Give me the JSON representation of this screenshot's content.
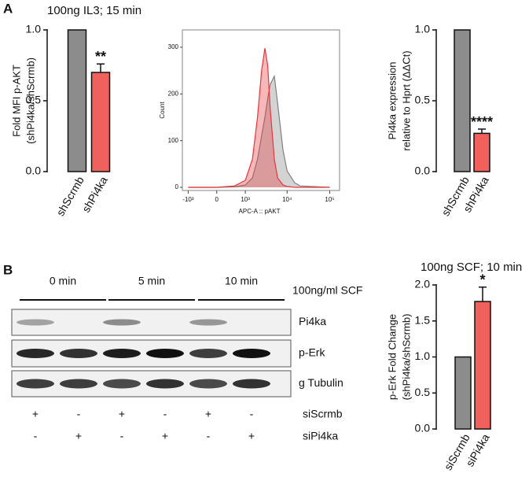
{
  "panels": {
    "a": "A",
    "b": "B"
  },
  "chart_data": [
    {
      "type": "bar",
      "title": "100ng IL3; 15 min",
      "y_label": [
        "Fold MFI p-AKT",
        "(shPi4ka/shScrmb)"
      ],
      "categories": [
        "shScrmb",
        "shPi4ka"
      ],
      "values": [
        1.0,
        0.7
      ],
      "errors": [
        null,
        0.06
      ],
      "sig_labels": [
        null,
        "**"
      ],
      "colors": [
        "#8c8c8c",
        "#f0605d"
      ],
      "ylim": [
        0,
        1.0
      ],
      "yticks": [
        {
          "value": 0,
          "label": "0.0"
        },
        {
          "value": 0.5,
          "label": "0.5"
        },
        {
          "value": 1.0,
          "label": "1.0"
        }
      ]
    },
    {
      "type": "histogram_overlay",
      "y_label": "Count",
      "x_label": "APC-A :: pAKT",
      "xscale": "biexponential",
      "x": [
        -1000,
        0,
        500,
        1000,
        1500,
        2000,
        2500,
        3000,
        3500,
        4000,
        5000,
        6000,
        8000,
        10000,
        15000,
        20000,
        100000
      ],
      "series": [
        {
          "color": "#808080",
          "values": [
            0,
            0,
            1,
            5,
            20,
            60,
            110,
            150,
            190,
            220,
            238,
            180,
            80,
            35,
            10,
            3,
            0
          ]
        },
        {
          "color": "#e8353a",
          "values": [
            0,
            0,
            3,
            15,
            60,
            150,
            250,
            298,
            260,
            170,
            60,
            20,
            5,
            2,
            0,
            0,
            0
          ]
        }
      ],
      "xlim": [
        -1400,
        170000
      ],
      "ylim": [
        0,
        300
      ],
      "xticks": [
        {
          "value": -1000,
          "label": "-10³"
        },
        0,
        {
          "value": 1000,
          "label": "10³"
        },
        {
          "value": 10000,
          "label": "10⁴"
        },
        {
          "value": 100000,
          "label": "10⁵"
        }
      ],
      "yticks": [
        0,
        100,
        200,
        300
      ]
    },
    {
      "type": "bar",
      "y_label": [
        "Pi4ka expression",
        "relative to Hprt (ΔΔCt)"
      ],
      "categories": [
        "shScrmb",
        "shPi4ka"
      ],
      "values": [
        1.0,
        0.27
      ],
      "errors": [
        null,
        0.03
      ],
      "sig_labels": [
        null,
        "****"
      ],
      "colors": [
        "#8c8c8c",
        "#f0605d"
      ],
      "ylim": [
        0,
        1.0
      ],
      "yticks": [
        {
          "value": 0,
          "label": "0.0"
        },
        {
          "value": 0.5,
          "label": "0.5"
        },
        {
          "value": 1.0,
          "label": "1.0"
        }
      ]
    },
    {
      "type": "bar",
      "title": "100ng SCF; 10 min",
      "y_label": [
        "p-Erk Fold Change",
        "(shPi4ka/shScrmb)"
      ],
      "categories": [
        "siScrmb",
        "siPi4ka"
      ],
      "values": [
        1.0,
        1.77
      ],
      "errors": [
        null,
        0.2
      ],
      "sig_labels": [
        null,
        "*"
      ],
      "colors": [
        "#8c8c8c",
        "#f0605d"
      ],
      "ylim": [
        0,
        2.0
      ],
      "yticks": [
        {
          "value": 0,
          "label": "0.0"
        },
        {
          "value": 0.5,
          "label": "0.5"
        },
        {
          "value": 1.0,
          "label": "1.0"
        },
        {
          "value": 1.5,
          "label": "1.5"
        },
        {
          "value": 2.0,
          "label": "2.0"
        }
      ]
    }
  ],
  "blot": {
    "time_labels": [
      "0 min",
      "5 min",
      "10 min"
    ],
    "treatment": "100ng/ml SCF",
    "bands": [
      "Pi4ka",
      "p-Erk",
      "g Tubulin"
    ],
    "rows": [
      {
        "name": "siScrmb",
        "signs": [
          "+",
          "-",
          "+",
          "-",
          "+",
          "-"
        ]
      },
      {
        "name": "siPi4ka",
        "signs": [
          "-",
          "+",
          "-",
          "+",
          "-",
          "+"
        ]
      }
    ]
  }
}
